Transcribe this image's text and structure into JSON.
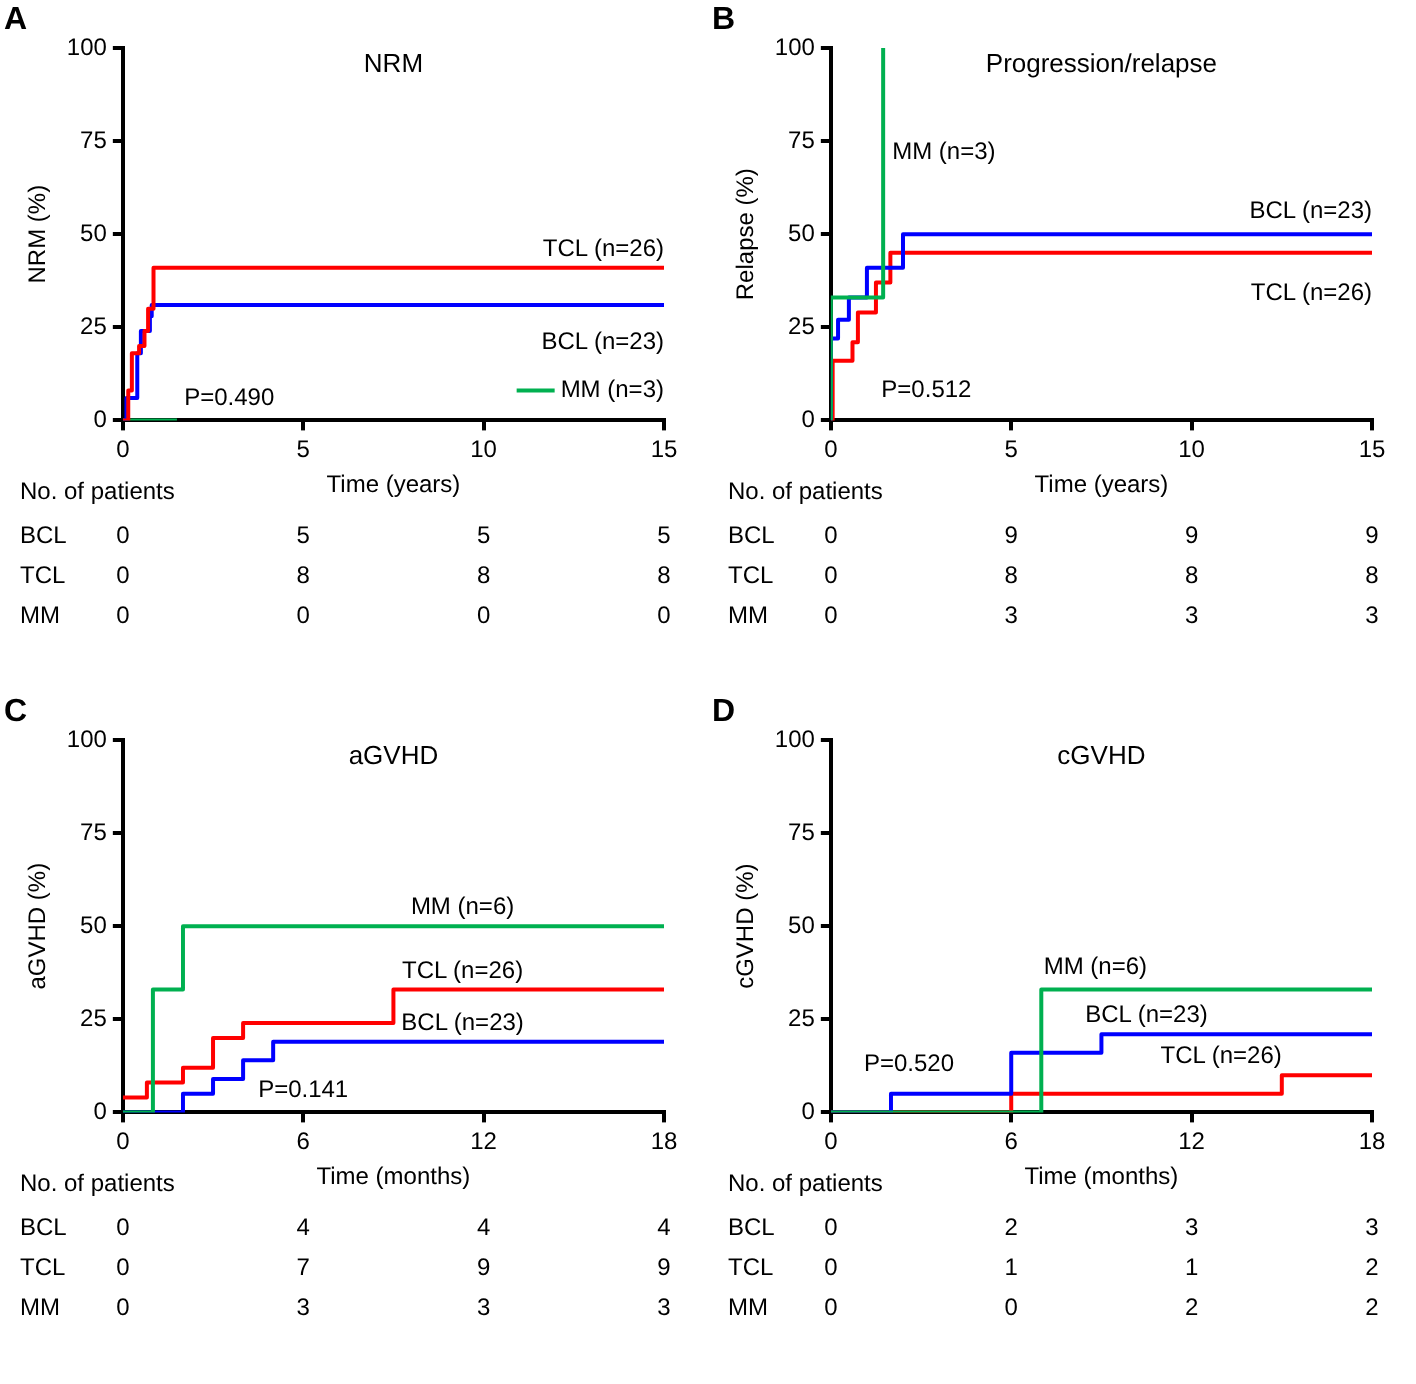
{
  "chart_data": [
    {
      "type": "step",
      "title": "NRM",
      "xlabel": "Time (years)",
      "ylabel": "NRM (%)",
      "xlim": [
        0,
        15
      ],
      "xticks": [
        0,
        5,
        10,
        15
      ],
      "ylim": [
        0,
        100
      ],
      "yticks": [
        0,
        25,
        50,
        75,
        100
      ],
      "grid": false,
      "legend": "bottom right",
      "marker": "none",
      "line_style": "solid",
      "series": [
        {
          "name": "TCL (n=26)",
          "color": "#ff0000",
          "x": [
            0,
            0.15,
            0.25,
            0.45,
            0.6,
            0.7,
            0.85,
            15
          ],
          "values": [
            0,
            8,
            18,
            20,
            24,
            30,
            41,
            41
          ]
        },
        {
          "name": "BCL (n=23)",
          "color": "#0000ff",
          "x": [
            0,
            0.1,
            0.4,
            0.5,
            0.75,
            0.8,
            15
          ],
          "values": [
            0,
            6,
            18,
            24,
            28,
            31,
            31
          ]
        },
        {
          "name": "MM (n=3)",
          "color": "#00b050",
          "x": [
            0,
            1.5
          ],
          "values": [
            0,
            0
          ]
        }
      ],
      "annotations": [
        "A",
        "P=0.490",
        "No. of patients",
        "BCL",
        "0",
        "5",
        "5",
        "5",
        "TCL",
        "0",
        "8",
        "8",
        "8",
        "MM",
        "0",
        "0",
        "0",
        "0"
      ]
    },
    {
      "type": "step",
      "title": "Progression/relapse",
      "xlabel": "Time (years)",
      "ylabel": "Relapse (%)",
      "xlim": [
        0,
        15
      ],
      "xticks": [
        0,
        5,
        10,
        15
      ],
      "ylim": [
        0,
        100
      ],
      "yticks": [
        0,
        25,
        50,
        75,
        100
      ],
      "grid": false,
      "marker": "none",
      "line_style": "solid",
      "series": [
        {
          "name": "MM (n=3)",
          "color": "#00b050",
          "x": [
            0,
            0,
            1.45
          ],
          "values": [
            0,
            33,
            100
          ]
        },
        {
          "name": "BCL (n=23)",
          "color": "#0000ff",
          "x": [
            0,
            0,
            0.2,
            0.5,
            1.0,
            2.0,
            15
          ],
          "values": [
            0,
            22,
            27,
            33,
            41,
            50,
            50
          ]
        },
        {
          "name": "TCL (n=26)",
          "color": "#ff0000",
          "x": [
            0,
            0.05,
            0.6,
            0.75,
            1.25,
            1.65,
            15
          ],
          "values": [
            0,
            16,
            21,
            29,
            37,
            45,
            45
          ]
        }
      ],
      "annotations": [
        "B",
        "P=0.512",
        "No. of patients",
        "BCL",
        "0",
        "9",
        "9",
        "9",
        "TCL",
        "0",
        "8",
        "8",
        "8",
        "MM",
        "0",
        "3",
        "3",
        "3"
      ]
    },
    {
      "type": "step",
      "title": "aGVHD",
      "xlabel": "Time (months)",
      "ylabel": "aGVHD (%)",
      "xlim": [
        0,
        18
      ],
      "xticks": [
        0,
        6,
        12,
        18
      ],
      "ylim": [
        0,
        100
      ],
      "yticks": [
        0,
        25,
        50,
        75,
        100
      ],
      "grid": false,
      "marker": "none",
      "line_style": "solid",
      "series": [
        {
          "name": "MM (n=6)",
          "color": "#00b050",
          "x": [
            0,
            1,
            2,
            18
          ],
          "values": [
            0,
            33,
            50,
            50
          ]
        },
        {
          "name": "TCL (n=26)",
          "color": "#ff0000",
          "x": [
            0,
            0.8,
            2,
            3,
            4,
            9,
            18
          ],
          "values": [
            4,
            8,
            12,
            20,
            24,
            33,
            33
          ]
        },
        {
          "name": "BCL (n=23)",
          "color": "#0000ff",
          "x": [
            0,
            2,
            3,
            4,
            5,
            18
          ],
          "values": [
            0,
            5,
            9,
            14,
            19,
            19
          ]
        }
      ],
      "annotations": [
        "C",
        "P=0.141",
        "No. of patients",
        "BCL",
        "0",
        "4",
        "4",
        "4",
        "TCL",
        "0",
        "7",
        "9",
        "9",
        "MM",
        "0",
        "3",
        "3",
        "3"
      ]
    },
    {
      "type": "step",
      "title": "cGVHD",
      "xlabel": "Time (months)",
      "ylabel": "cGVHD (%)",
      "xlim": [
        0,
        18
      ],
      "xticks": [
        0,
        6,
        12,
        18
      ],
      "ylim": [
        0,
        100
      ],
      "yticks": [
        0,
        25,
        50,
        75,
        100
      ],
      "grid": false,
      "marker": "none",
      "line_style": "solid",
      "series": [
        {
          "name": "MM (n=6)",
          "color": "#00b050",
          "x": [
            0,
            7,
            18
          ],
          "values": [
            0,
            33,
            33
          ]
        },
        {
          "name": "BCL (n=23)",
          "color": "#0000ff",
          "x": [
            0,
            2,
            6,
            9,
            18
          ],
          "values": [
            0,
            5,
            16,
            21,
            21
          ]
        },
        {
          "name": "TCL (n=26)",
          "color": "#ff0000",
          "x": [
            0,
            6,
            15,
            18
          ],
          "values": [
            0,
            5,
            10,
            10
          ]
        }
      ],
      "annotations": [
        "D",
        "P=0.520",
        "No. of patients",
        "BCL",
        "0",
        "2",
        "3",
        "3",
        "TCL",
        "0",
        "1",
        "1",
        "2",
        "MM",
        "0",
        "0",
        "2",
        "2"
      ]
    }
  ]
}
